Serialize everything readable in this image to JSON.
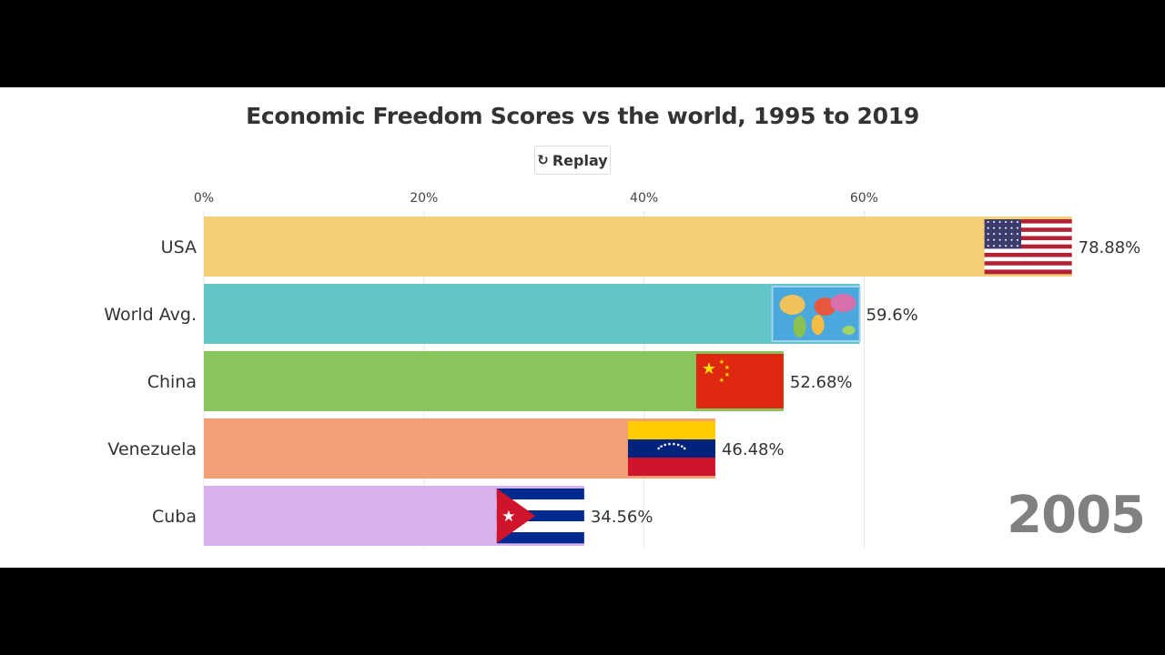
{
  "title": "Economic Freedom Scores vs the world, 1995 to 2019",
  "replay": {
    "label": "Replay",
    "icon": "replay-icon"
  },
  "year_label": "2005",
  "chart_data": {
    "type": "bar",
    "orientation": "horizontal",
    "xlim": [
      0,
      80
    ],
    "x_ticks": [
      "0%",
      "20%",
      "40%",
      "60%"
    ],
    "x_tick_values": [
      0,
      20,
      40,
      60
    ],
    "grid": true,
    "categories": [
      "USA",
      "World Avg.",
      "China",
      "Venezuela",
      "Cuba"
    ],
    "values": [
      78.88,
      59.6,
      52.68,
      46.48,
      34.56
    ],
    "value_labels": [
      "78.88%",
      "59.6%",
      "52.68%",
      "46.48%",
      "34.56%"
    ],
    "colors": [
      "#f3d075",
      "#64c5c9",
      "#88c55d",
      "#f4a077",
      "#d8b1ec"
    ],
    "flags": [
      "usa-flag-icon",
      "world-map-icon",
      "china-flag-icon",
      "venezuela-flag-icon",
      "cuba-flag-icon"
    ]
  }
}
